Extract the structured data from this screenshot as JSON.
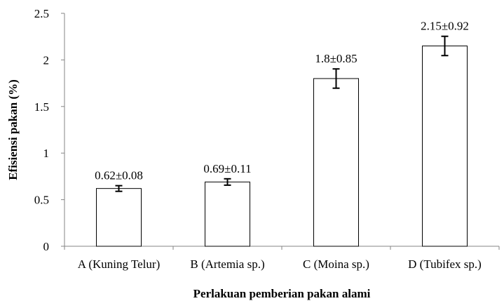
{
  "chart_data": {
    "type": "bar",
    "title": "",
    "xlabel": "Perlakuan pemberian pakan alami",
    "ylabel": "Efisiensi pakan (%)",
    "ylim": [
      0,
      2.5
    ],
    "yticks": [
      "0",
      "0.5",
      "1",
      "1.5",
      "2",
      "2.5"
    ],
    "categories": [
      "A (Kuning Telur)",
      "B (Artemia sp.)",
      "C (Moina sp.)",
      "D (Tubifex sp.)"
    ],
    "values": [
      0.62,
      0.69,
      1.8,
      2.15
    ],
    "errors": [
      0.08,
      0.11,
      0.85,
      0.92
    ],
    "data_labels": [
      "0.62±0.08",
      "0.69±0.11",
      "1.8±0.85",
      "2.15±0.92"
    ],
    "grid": false,
    "legend": "none",
    "colors": {
      "bar_fill": "#ffffff",
      "bar_stroke": "#000000",
      "axis": "#868686"
    }
  }
}
